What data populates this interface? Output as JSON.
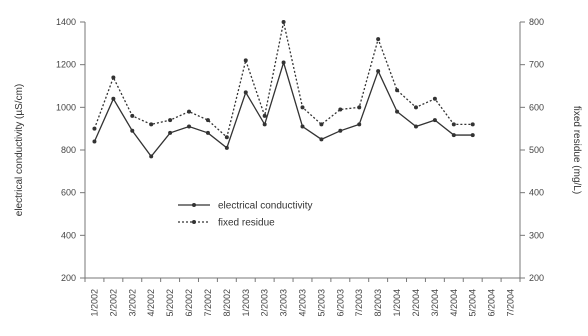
{
  "chart_data": {
    "type": "line",
    "title": "",
    "ylabel": "electrical conductivity (µS/cm)",
    "y2label": "fixed residue (mg/L)",
    "ylim": [
      200,
      1400
    ],
    "yticks": [
      200,
      400,
      600,
      800,
      1000,
      1200,
      1400
    ],
    "y2lim": [
      200,
      800
    ],
    "y2ticks": [
      200,
      300,
      400,
      500,
      600,
      700,
      800
    ],
    "categories": [
      "1/2002",
      "2/2002",
      "3/2002",
      "4/2002",
      "5/2002",
      "6/2002",
      "7/2002",
      "8/2002",
      "1/2003",
      "2/2003",
      "3/2003",
      "4/2003",
      "5/2003",
      "6/2003",
      "7/2003",
      "8/2003",
      "1/2004",
      "2/2004",
      "3/2004",
      "4/2004",
      "5/2004",
      "6/2004",
      "7/2004"
    ],
    "legend_position": "center-left",
    "series": [
      {
        "name": "electrical conductivity",
        "axis": "left",
        "style": "solid",
        "color": "#333333",
        "values": [
          840,
          1040,
          890,
          770,
          880,
          910,
          880,
          810,
          1070,
          920,
          1210,
          910,
          850,
          890,
          920,
          1170,
          980,
          910,
          940,
          870,
          870,
          null,
          null
        ]
      },
      {
        "name": "fixed residue",
        "axis": "right",
        "style": "dotted",
        "color": "#333333",
        "values": [
          550,
          670,
          580,
          560,
          570,
          590,
          570,
          530,
          710,
          580,
          800,
          600,
          560,
          595,
          600,
          760,
          640,
          600,
          620,
          560,
          560,
          null,
          null
        ]
      }
    ]
  }
}
